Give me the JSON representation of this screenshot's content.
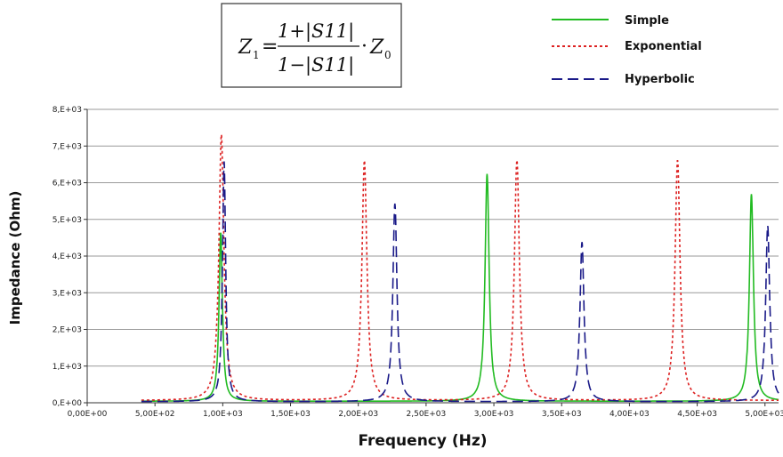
{
  "equation": {
    "lhs": "Z",
    "lhs_sub": "1",
    "equals": "=",
    "numerator": "1+|S11|",
    "denominator": "1−|S11|",
    "times": "·",
    "rhs": "Z",
    "rhs_sub": "0"
  },
  "chart_data": {
    "type": "line",
    "title": "",
    "xlabel": "Frequency   (Hz)",
    "ylabel": "Impedance  (Ohm)",
    "xlim": [
      0,
      5100
    ],
    "ylim": [
      0,
      8000
    ],
    "x_ticks": [
      0,
      500,
      1000,
      1500,
      2000,
      2500,
      3000,
      3500,
      4000,
      4500,
      5000
    ],
    "x_tick_labels": [
      "0,00E+00",
      "5,00E+02",
      "1,00E+03",
      "1,50E+03",
      "2,00E+03",
      "2,50E+03",
      "3,00E+03",
      "3,50E+03",
      "4,00E+03",
      "4,50E+03",
      "5,00E+03"
    ],
    "y_ticks": [
      0,
      1000,
      2000,
      3000,
      4000,
      5000,
      6000,
      7000,
      8000
    ],
    "y_tick_labels": [
      "0,E+00",
      "1,E+03",
      "2,E+03",
      "3,E+03",
      "4,E+03",
      "5,E+03",
      "6,E+03",
      "7,E+03",
      "8,E+03"
    ],
    "grid": "horizontal",
    "legend_position": "top-right",
    "x_range": [
      400,
      5100
    ],
    "series": [
      {
        "name": "Simple",
        "color": "#22bb22",
        "dash": "solid",
        "baseline": 40,
        "peaks": [
          {
            "x": 985,
            "y": 4600,
            "width": 15
          },
          {
            "x": 2950,
            "y": 6200,
            "width": 18
          },
          {
            "x": 4900,
            "y": 5650,
            "width": 18
          }
        ]
      },
      {
        "name": "Exponential",
        "color": "#dd2222",
        "dash": "dotted",
        "baseline": 60,
        "peaks": [
          {
            "x": 990,
            "y": 7250,
            "width": 22
          },
          {
            "x": 2045,
            "y": 6550,
            "width": 22
          },
          {
            "x": 3170,
            "y": 6550,
            "width": 22
          },
          {
            "x": 4355,
            "y": 6550,
            "width": 22
          }
        ]
      },
      {
        "name": "Hyperbolic",
        "color": "#1a1a88",
        "dash": "dashed",
        "baseline": 30,
        "peaks": [
          {
            "x": 1010,
            "y": 6550,
            "width": 14
          },
          {
            "x": 2270,
            "y": 5400,
            "width": 18
          },
          {
            "x": 3650,
            "y": 4350,
            "width": 18
          },
          {
            "x": 5020,
            "y": 4800,
            "width": 18
          }
        ]
      }
    ]
  }
}
